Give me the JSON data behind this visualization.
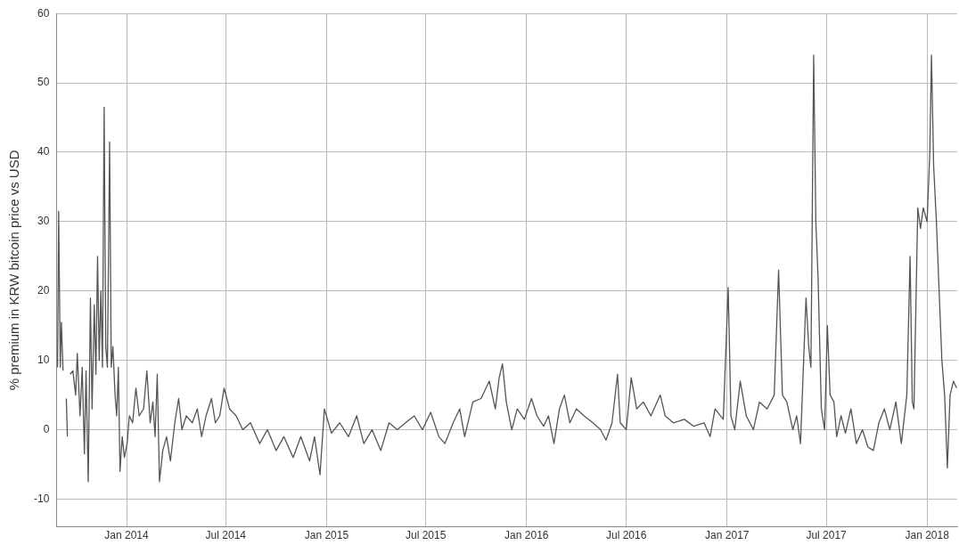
{
  "chart_data": {
    "type": "line",
    "ylabel": "% premium in KRW bitcoin price vs USD",
    "xlim": [
      "2013-08-26",
      "2018-02-25"
    ],
    "xticks": [
      {
        "value": "2014-01-01",
        "label": "Jan 2014"
      },
      {
        "value": "2014-07-01",
        "label": "Jul 2014"
      },
      {
        "value": "2015-01-01",
        "label": "Jan 2015"
      },
      {
        "value": "2015-07-01",
        "label": "Jul 2015"
      },
      {
        "value": "2016-01-01",
        "label": "Jan 2016"
      },
      {
        "value": "2016-07-01",
        "label": "Jul 2016"
      },
      {
        "value": "2017-01-01",
        "label": "Jan 2017"
      },
      {
        "value": "2017-07-01",
        "label": "Jul 2017"
      },
      {
        "value": "2018-01-01",
        "label": "Jan 2018"
      }
    ],
    "ylim": [
      -14,
      60
    ],
    "yticks": [
      -10,
      0,
      10,
      20,
      30,
      40,
      50,
      60
    ],
    "grid": true,
    "legend": false,
    "marker": "none",
    "line_style": "solid",
    "series": [
      {
        "color": "#555555",
        "x": [
          "2013-08-28",
          "2013-08-30",
          "2013-09-02",
          "2013-09-04",
          "2013-09-07",
          "2013-09-10",
          "2013-09-13",
          "2013-09-15",
          "2013-09-17",
          "2013-09-20",
          "2013-09-25",
          "2013-09-30",
          "2013-10-03",
          "2013-10-08",
          "2013-10-12",
          "2013-10-16",
          "2013-10-19",
          "2013-10-23",
          "2013-10-27",
          "2013-10-30",
          "2013-11-03",
          "2013-11-06",
          "2013-11-09",
          "2013-11-12",
          "2013-11-15",
          "2013-11-18",
          "2013-11-21",
          "2013-11-24",
          "2013-11-27",
          "2013-12-01",
          "2013-12-04",
          "2013-12-07",
          "2013-12-11",
          "2013-12-14",
          "2013-12-17",
          "2013-12-20",
          "2013-12-24",
          "2013-12-28",
          "2014-01-02",
          "2014-01-06",
          "2014-01-12",
          "2014-01-18",
          "2014-01-24",
          "2014-02-01",
          "2014-02-07",
          "2014-02-13",
          "2014-02-18",
          "2014-02-22",
          "2014-02-26",
          "2014-03-02",
          "2014-03-08",
          "2014-03-15",
          "2014-03-22",
          "2014-03-30",
          "2014-04-06",
          "2014-04-12",
          "2014-04-20",
          "2014-05-01",
          "2014-05-10",
          "2014-05-18",
          "2014-05-26",
          "2014-06-05",
          "2014-06-12",
          "2014-06-20",
          "2014-06-28",
          "2014-07-08",
          "2014-07-20",
          "2014-08-01",
          "2014-08-15",
          "2014-09-01",
          "2014-09-15",
          "2014-10-01",
          "2014-10-15",
          "2014-11-01",
          "2014-11-15",
          "2014-12-01",
          "2014-12-10",
          "2014-12-20",
          "2014-12-28",
          "2015-01-10",
          "2015-01-25",
          "2015-02-10",
          "2015-02-25",
          "2015-03-10",
          "2015-03-25",
          "2015-04-10",
          "2015-04-25",
          "2015-05-10",
          "2015-05-25",
          "2015-06-10",
          "2015-06-25",
          "2015-07-10",
          "2015-07-25",
          "2015-08-05",
          "2015-08-20",
          "2015-09-01",
          "2015-09-10",
          "2015-09-25",
          "2015-10-10",
          "2015-10-25",
          "2015-11-05",
          "2015-11-12",
          "2015-11-18",
          "2015-11-25",
          "2015-12-05",
          "2015-12-15",
          "2015-12-28",
          "2016-01-10",
          "2016-01-20",
          "2016-02-01",
          "2016-02-10",
          "2016-02-20",
          "2016-03-01",
          "2016-03-10",
          "2016-03-20",
          "2016-04-01",
          "2016-04-15",
          "2016-05-01",
          "2016-05-15",
          "2016-05-25",
          "2016-06-05",
          "2016-06-15",
          "2016-06-20",
          "2016-07-01",
          "2016-07-10",
          "2016-07-20",
          "2016-08-01",
          "2016-08-15",
          "2016-09-01",
          "2016-09-10",
          "2016-09-25",
          "2016-10-15",
          "2016-11-01",
          "2016-11-20",
          "2016-12-01",
          "2016-12-10",
          "2016-12-25",
          "2017-01-03",
          "2017-01-08",
          "2017-01-15",
          "2017-01-25",
          "2017-02-05",
          "2017-02-18",
          "2017-03-01",
          "2017-03-15",
          "2017-03-28",
          "2017-04-05",
          "2017-04-12",
          "2017-04-20",
          "2017-05-01",
          "2017-05-08",
          "2017-05-15",
          "2017-05-25",
          "2017-05-30",
          "2017-06-03",
          "2017-06-08",
          "2017-06-12",
          "2017-06-16",
          "2017-06-22",
          "2017-06-28",
          "2017-07-03",
          "2017-07-08",
          "2017-07-15",
          "2017-07-20",
          "2017-07-28",
          "2017-08-05",
          "2017-08-15",
          "2017-08-25",
          "2017-09-05",
          "2017-09-15",
          "2017-09-25",
          "2017-10-05",
          "2017-10-15",
          "2017-10-25",
          "2017-11-05",
          "2017-11-15",
          "2017-11-25",
          "2017-12-01",
          "2017-12-05",
          "2017-12-08",
          "2017-12-15",
          "2017-12-20",
          "2017-12-25",
          "2018-01-01",
          "2018-01-06",
          "2018-01-09",
          "2018-01-13",
          "2018-01-18",
          "2018-01-22",
          "2018-01-28",
          "2018-02-02",
          "2018-02-07",
          "2018-02-12",
          "2018-02-18",
          "2018-02-24"
        ],
        "values": [
          9,
          31.5,
          9,
          15.5,
          8.5,
          null,
          4.5,
          -1,
          null,
          8,
          8.5,
          5,
          11,
          2,
          9,
          -3.5,
          8.5,
          -7.5,
          19,
          3,
          18,
          8,
          25,
          10,
          20,
          9,
          46.5,
          12,
          9,
          41.5,
          9,
          12,
          5,
          2,
          9,
          -6,
          -1,
          -4,
          -2,
          2,
          1,
          6,
          2,
          3,
          8.5,
          1,
          4,
          -1,
          8,
          -7.5,
          -3,
          -1,
          -4.5,
          1,
          4.5,
          0,
          2,
          1,
          3,
          -1,
          2,
          4.5,
          1,
          2,
          6,
          3,
          2,
          0,
          1,
          -2,
          0,
          -3,
          -1,
          -4,
          -1,
          -4.5,
          -1,
          -6.5,
          3,
          -0.5,
          1,
          -1,
          2,
          -2,
          0,
          -3,
          1,
          0,
          1,
          2,
          0,
          2.5,
          -1,
          -2,
          1,
          3,
          -1,
          4,
          4.5,
          7,
          3,
          7.5,
          9.5,
          4,
          0,
          3,
          1.5,
          4.5,
          2,
          0.5,
          2,
          -2,
          3,
          5,
          1,
          3,
          2,
          1,
          0,
          -1.5,
          1,
          8,
          1,
          0,
          7.5,
          3,
          4,
          2,
          5,
          2,
          1,
          1.5,
          0.5,
          1,
          -1,
          3,
          1.5,
          20.5,
          2,
          0,
          7,
          2,
          0,
          4,
          3,
          5,
          23,
          5,
          4,
          0,
          2,
          -2,
          19,
          12,
          9,
          54,
          30,
          22,
          3,
          0,
          15,
          5,
          4,
          -1,
          2,
          -0.5,
          3,
          -2,
          0,
          -2.5,
          -3,
          1,
          3,
          0,
          4,
          -2,
          5,
          25,
          4,
          3,
          32,
          29,
          32,
          30,
          40,
          54,
          38,
          30,
          22,
          10,
          5,
          -5.5,
          5,
          7,
          6
        ]
      }
    ]
  }
}
